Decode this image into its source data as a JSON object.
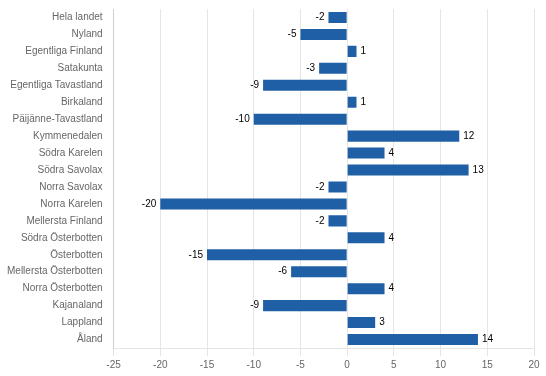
{
  "chart_data": {
    "type": "bar",
    "orientation": "horizontal",
    "categories": [
      "Åland",
      "Lappland",
      "Kajanaland",
      "Norra Österbotten",
      "Mellersta Österbotten",
      "Österbotten",
      "Södra Österbotten",
      "Mellersta Finland",
      "Norra Karelen",
      "Norra Savolax",
      "Södra Savolax",
      "Södra Karelen",
      "Kymmenedalen",
      "Päijänne-Tavastland",
      "Birkaland",
      "Egentliga Tavastland",
      "Satakunta",
      "Egentliga Finland",
      "Nyland",
      "Hela landet"
    ],
    "values": [
      14,
      3,
      -9,
      4,
      -6,
      -15,
      4,
      -2,
      -20,
      -2,
      13,
      4,
      12,
      -10,
      1,
      -9,
      -3,
      1,
      -5,
      -2
    ],
    "color": "#1F5FA6",
    "xlim": [
      -25,
      20
    ],
    "xticks": [
      -25,
      -20,
      -15,
      -10,
      -5,
      0,
      5,
      10,
      15,
      20
    ],
    "grid": true,
    "data_labels": true
  }
}
